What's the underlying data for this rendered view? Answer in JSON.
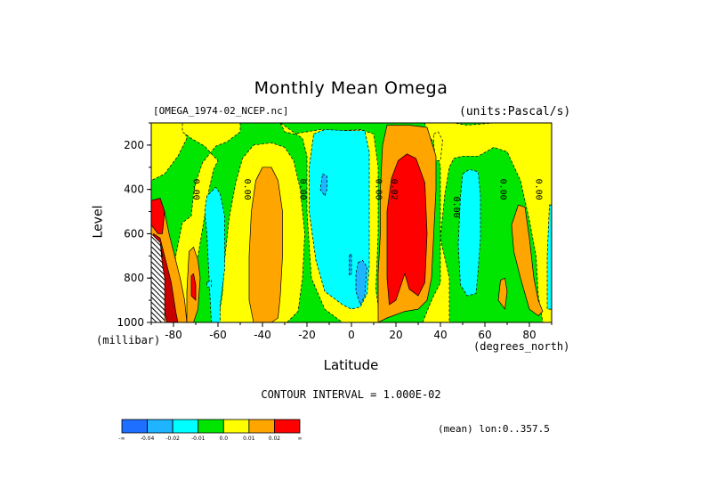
{
  "header": {
    "title": "Monthly Mean Omega",
    "file": "[OMEGA_1974-02_NCEP.nc]",
    "units": "(units:Pascal/s)"
  },
  "axes": {
    "xlabel": "Latitude",
    "xunit": "(degrees_north)",
    "ylabel": "Level",
    "yunit": "(millibar)"
  },
  "footer": {
    "contour_interval": "CONTOUR INTERVAL = 1.000E-02",
    "mean_lon": "(mean) lon:0..357.5"
  },
  "colorbar": {
    "colors": [
      "#1e6eff",
      "#1eb4ff",
      "#00ffff",
      "#00e600",
      "#ffff00",
      "#ffa500",
      "#ff0000"
    ],
    "labels": [
      "-∞",
      "-0.04",
      "-0.02",
      "-0.01",
      "0.0",
      "0.01",
      "0.02",
      "∞"
    ]
  },
  "chart_data": {
    "type": "heatmap",
    "title": "Monthly Mean Omega",
    "xlabel": "Latitude",
    "ylabel": "Level",
    "xlim": [
      -90,
      90
    ],
    "ylim": [
      1000,
      100
    ],
    "x_ticks": [
      -80,
      -60,
      -40,
      -20,
      0,
      20,
      40,
      60,
      80
    ],
    "y_ticks": [
      200,
      400,
      600,
      800,
      1000
    ],
    "background_level": 0.0,
    "regions": [
      {
        "level": -0.01,
        "polygon": [
          [
            -89,
            100
          ],
          [
            -76,
            100
          ],
          [
            -74,
            170
          ],
          [
            -78,
            250
          ],
          [
            -84,
            330
          ],
          [
            -90,
            360
          ],
          [
            -90,
            100
          ]
        ]
      },
      {
        "level": -0.01,
        "polygon": [
          [
            -76,
            100
          ],
          [
            -50,
            100
          ],
          [
            -50,
            140
          ],
          [
            -56,
            185
          ],
          [
            -61,
            205
          ],
          [
            -67,
            280
          ],
          [
            -70,
            370
          ],
          [
            -71,
            420
          ],
          [
            -72,
            520
          ],
          [
            -76,
            550
          ],
          [
            -79,
            700
          ],
          [
            -80,
            850
          ],
          [
            -80,
            1000
          ],
          [
            -75,
            1000
          ],
          [
            -71,
            880
          ],
          [
            -69,
            700
          ],
          [
            -66,
            520
          ],
          [
            -64,
            400
          ],
          [
            -62,
            310
          ],
          [
            -60,
            270
          ],
          [
            -62,
            250
          ],
          [
            -66,
            205
          ],
          [
            -72,
            170
          ],
          [
            -76,
            140
          ]
        ]
      },
      {
        "level": -0.01,
        "polygon": [
          [
            -60,
            1000
          ],
          [
            -58,
            870
          ],
          [
            -57,
            720
          ],
          [
            -55,
            530
          ],
          [
            -52,
            370
          ],
          [
            -49,
            260
          ],
          [
            -44,
            200
          ],
          [
            -36,
            190
          ],
          [
            -30,
            210
          ],
          [
            -26,
            270
          ],
          [
            -23,
            400
          ],
          [
            -21,
            600
          ],
          [
            -22,
            800
          ],
          [
            -24,
            950
          ],
          [
            -29,
            1000
          ]
        ]
      },
      {
        "level": -0.01,
        "polygon": [
          [
            -32,
            100
          ],
          [
            -30,
            140
          ],
          [
            -26,
            150
          ],
          [
            -20,
            140
          ],
          [
            -14,
            130
          ],
          [
            -4,
            135
          ],
          [
            4,
            130
          ],
          [
            10,
            150
          ],
          [
            12,
            300
          ],
          [
            12,
            600
          ],
          [
            11,
            850
          ],
          [
            13,
            1000
          ],
          [
            8,
            1000
          ],
          [
            -4,
            1000
          ],
          [
            -12,
            940
          ],
          [
            -18,
            800
          ],
          [
            -20,
            500
          ],
          [
            -20,
            250
          ],
          [
            -22,
            170
          ]
        ]
      },
      {
        "level": -0.01,
        "polygon": [
          [
            33,
            100
          ],
          [
            46,
            100
          ],
          [
            52,
            110
          ],
          [
            64,
            100
          ],
          [
            90,
            100
          ],
          [
            90,
            1000
          ],
          [
            86,
            1000
          ],
          [
            84,
            880
          ],
          [
            83,
            700
          ],
          [
            80,
            540
          ],
          [
            76,
            360
          ],
          [
            70,
            230
          ],
          [
            64,
            210
          ],
          [
            57,
            250
          ],
          [
            50,
            250
          ],
          [
            46,
            260
          ],
          [
            44,
            300
          ],
          [
            42,
            420
          ],
          [
            40,
            620
          ],
          [
            44,
            800
          ],
          [
            44,
            1000
          ],
          [
            32,
            1000
          ],
          [
            36,
            900
          ],
          [
            40,
            820
          ],
          [
            40,
            600
          ],
          [
            40,
            300
          ],
          [
            38,
            200
          ],
          [
            34,
            150
          ]
        ]
      },
      {
        "level": -0.01,
        "polygon": [
          [
            37,
            150
          ],
          [
            39,
            140
          ],
          [
            41,
            180
          ],
          [
            40,
            270
          ],
          [
            38,
            270
          ],
          [
            37,
            200
          ]
        ]
      },
      {
        "level": -0.02,
        "polygon": [
          [
            -63,
            1000
          ],
          [
            -64,
            800
          ],
          [
            -65,
            600
          ],
          [
            -66,
            500
          ],
          [
            -65,
            430
          ],
          [
            -61,
            390
          ],
          [
            -59,
            420
          ],
          [
            -57,
            520
          ],
          [
            -57,
            760
          ],
          [
            -59,
            920
          ],
          [
            -59,
            1000
          ]
        ]
      },
      {
        "level": -0.02,
        "polygon": [
          [
            -17,
            150
          ],
          [
            -12,
            130
          ],
          [
            -2,
            135
          ],
          [
            6,
            135
          ],
          [
            8,
            230
          ],
          [
            8,
            500
          ],
          [
            8,
            750
          ],
          [
            7,
            870
          ],
          [
            4,
            930
          ],
          [
            0,
            940
          ],
          [
            -4,
            920
          ],
          [
            -12,
            860
          ],
          [
            -16,
            720
          ],
          [
            -19,
            500
          ],
          [
            -19,
            300
          ]
        ]
      },
      {
        "level": -0.02,
        "polygon": [
          [
            50,
            330
          ],
          [
            53,
            310
          ],
          [
            57,
            320
          ],
          [
            58,
            430
          ],
          [
            58,
            620
          ],
          [
            57,
            760
          ],
          [
            56,
            870
          ],
          [
            52,
            880
          ],
          [
            49,
            830
          ],
          [
            48,
            650
          ],
          [
            49,
            430
          ]
        ]
      },
      {
        "level": -0.02,
        "polygon": [
          [
            89,
            470
          ],
          [
            90,
            470
          ],
          [
            90,
            940
          ],
          [
            88,
            940
          ],
          [
            88,
            700
          ]
        ]
      },
      {
        "level": -0.02,
        "polygon": [
          [
            -65,
            820
          ],
          [
            -63,
            810
          ],
          [
            -63,
            840
          ],
          [
            -65,
            840
          ]
        ]
      },
      {
        "level": -0.04,
        "polygon": [
          [
            -13,
            330
          ],
          [
            -11,
            340
          ],
          [
            -11,
            400
          ],
          [
            -12,
            430
          ],
          [
            -14,
            400
          ]
        ]
      },
      {
        "level": -0.04,
        "polygon": [
          [
            3,
            730
          ],
          [
            5,
            720
          ],
          [
            7,
            750
          ],
          [
            6,
            880
          ],
          [
            4,
            920
          ],
          [
            2,
            860
          ],
          [
            2,
            780
          ]
        ]
      },
      {
        "level": -0.04,
        "polygon": [
          [
            -1,
            700
          ],
          [
            0,
            690
          ],
          [
            0,
            780
          ],
          [
            -1,
            790
          ]
        ]
      },
      {
        "level": 0.01,
        "polygon": [
          [
            -44,
            1000
          ],
          [
            -46,
            900
          ],
          [
            -46,
            700
          ],
          [
            -45,
            500
          ],
          [
            -43,
            360
          ],
          [
            -40,
            300
          ],
          [
            -36,
            300
          ],
          [
            -33,
            360
          ],
          [
            -31,
            500
          ],
          [
            -31,
            700
          ],
          [
            -32,
            880
          ],
          [
            -33,
            980
          ],
          [
            -36,
            1000
          ]
        ]
      },
      {
        "level": 0.01,
        "polygon": [
          [
            12,
            1000
          ],
          [
            12,
            780
          ],
          [
            13,
            600
          ],
          [
            13,
            400
          ],
          [
            14,
            200
          ],
          [
            16,
            110
          ],
          [
            26,
            110
          ],
          [
            34,
            120
          ],
          [
            38,
            250
          ],
          [
            38,
            400
          ],
          [
            37,
            600
          ],
          [
            36,
            800
          ],
          [
            34,
            900
          ],
          [
            30,
            940
          ],
          [
            24,
            950
          ],
          [
            16,
            980
          ]
        ]
      },
      {
        "level": 0.01,
        "polygon": [
          [
            -90,
            460
          ],
          [
            -86,
            440
          ],
          [
            -84,
            500
          ],
          [
            -82,
            600
          ],
          [
            -79,
            720
          ],
          [
            -77,
            800
          ],
          [
            -75,
            900
          ],
          [
            -74,
            1000
          ],
          [
            -90,
            1000
          ]
        ]
      },
      {
        "level": 0.01,
        "polygon": [
          [
            -73,
            680
          ],
          [
            -71,
            660
          ],
          [
            -69,
            720
          ],
          [
            -68,
            800
          ],
          [
            -69,
            940
          ],
          [
            -71,
            1000
          ],
          [
            -74,
            1000
          ],
          [
            -74,
            860
          ]
        ]
      },
      {
        "level": 0.01,
        "polygon": [
          [
            72,
            560
          ],
          [
            75,
            470
          ],
          [
            78,
            480
          ],
          [
            80,
            620
          ],
          [
            82,
            800
          ],
          [
            84,
            900
          ],
          [
            86,
            950
          ],
          [
            84,
            970
          ],
          [
            80,
            940
          ],
          [
            76,
            800
          ],
          [
            73,
            680
          ]
        ]
      },
      {
        "level": 0.01,
        "polygon": [
          [
            -89,
            780
          ],
          [
            -88,
            790
          ],
          [
            -88,
            850
          ],
          [
            -90,
            850
          ]
        ]
      },
      {
        "level": 0.01,
        "polygon": [
          [
            67,
            810
          ],
          [
            69,
            800
          ],
          [
            70,
            860
          ],
          [
            69,
            940
          ],
          [
            66,
            900
          ]
        ]
      },
      {
        "level": 0.02,
        "polygon": [
          [
            17,
            920
          ],
          [
            16,
            800
          ],
          [
            16,
            500
          ],
          [
            18,
            350
          ],
          [
            21,
            270
          ],
          [
            25,
            240
          ],
          [
            29,
            260
          ],
          [
            33,
            370
          ],
          [
            34,
            600
          ],
          [
            33,
            820
          ],
          [
            30,
            880
          ],
          [
            26,
            850
          ],
          [
            24,
            780
          ],
          [
            22,
            840
          ],
          [
            20,
            900
          ]
        ]
      },
      {
        "level": 0.02,
        "polygon": [
          [
            -90,
            450
          ],
          [
            -86,
            440
          ],
          [
            -84,
            500
          ],
          [
            -85,
            600
          ],
          [
            -87,
            600
          ],
          [
            -90,
            560
          ]
        ]
      },
      {
        "level": 0.02,
        "polygon": [
          [
            -72,
            790
          ],
          [
            -71,
            780
          ],
          [
            -70,
            830
          ],
          [
            -70,
            900
          ],
          [
            -72,
            880
          ]
        ]
      },
      {
        "level": 0.03,
        "polygon": [
          [
            -89,
            600
          ],
          [
            -86,
            620
          ],
          [
            -84,
            700
          ],
          [
            -81,
            820
          ],
          [
            -79,
            950
          ],
          [
            -78,
            1000
          ],
          [
            -83,
            1000
          ],
          [
            -85,
            900
          ],
          [
            -87,
            800
          ],
          [
            -89,
            750
          ]
        ]
      },
      {
        "level": 0.04,
        "polygon": [
          [
            -90,
            620
          ],
          [
            -86,
            640
          ],
          [
            -85,
            700
          ],
          [
            -86,
            760
          ],
          [
            -90,
            760
          ]
        ]
      }
    ],
    "missing_region": {
      "label": "missing",
      "polygon": [
        [
          -90,
          600
        ],
        [
          -86,
          640
        ],
        [
          -85,
          740
        ],
        [
          -84,
          800
        ],
        [
          -84,
          880
        ],
        [
          -84,
          1000
        ],
        [
          -90,
          1000
        ]
      ]
    },
    "contour_labels": [
      {
        "text": "0.00",
        "x": -71,
        "y": 400
      },
      {
        "text": "0.00",
        "x": -48,
        "y": 400
      },
      {
        "text": "0.00",
        "x": -23,
        "y": 400
      },
      {
        "text": "0.00",
        "x": 11,
        "y": 400
      },
      {
        "text": "0.02",
        "x": 18,
        "y": 400
      },
      {
        "text": "0.00",
        "x": 46,
        "y": 480
      },
      {
        "text": "0.00",
        "x": 67,
        "y": 400
      },
      {
        "text": "0.00",
        "x": 83,
        "y": 400
      }
    ]
  }
}
